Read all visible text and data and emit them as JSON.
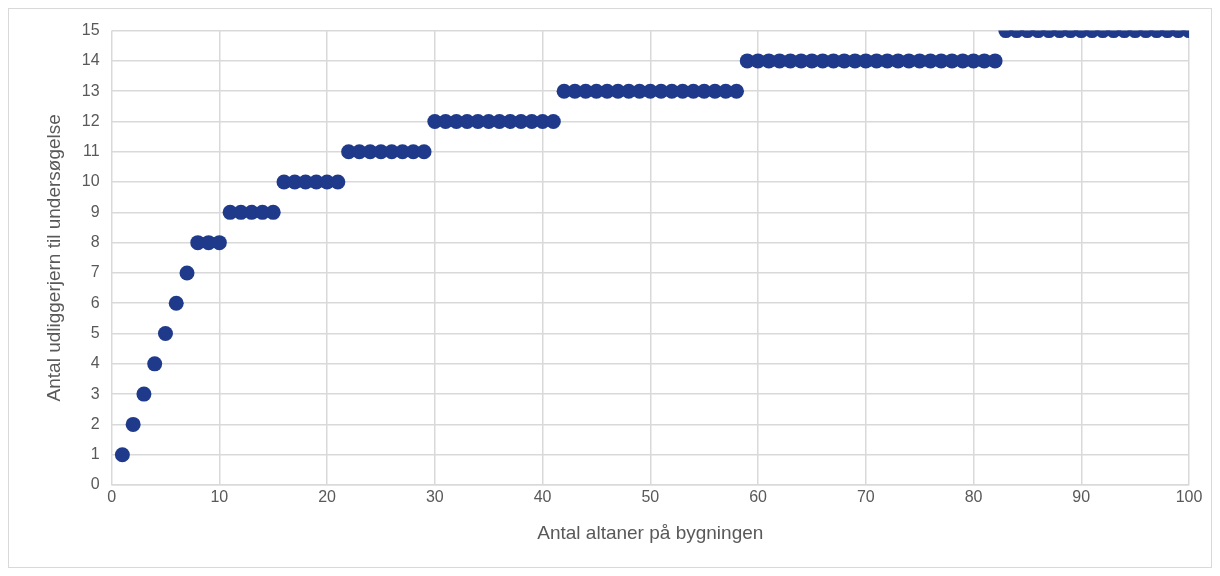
{
  "chart_data": {
    "type": "scatter",
    "xlabel": "Antal altaner på bygningen",
    "ylabel": "Antal udliggerjern til undersøgelse",
    "x": [
      1,
      2,
      3,
      4,
      5,
      6,
      7,
      8,
      9,
      10,
      11,
      12,
      13,
      14,
      15,
      16,
      17,
      18,
      19,
      20,
      21,
      22,
      23,
      24,
      25,
      26,
      27,
      28,
      29,
      30,
      31,
      32,
      33,
      34,
      35,
      36,
      37,
      38,
      39,
      40,
      41,
      42,
      43,
      44,
      45,
      46,
      47,
      48,
      49,
      50,
      51,
      52,
      53,
      54,
      55,
      56,
      57,
      58,
      59,
      60,
      61,
      62,
      63,
      64,
      65,
      66,
      67,
      68,
      69,
      70,
      71,
      72,
      73,
      74,
      75,
      76,
      77,
      78,
      79,
      80,
      81,
      82,
      83,
      84,
      85,
      86,
      87,
      88,
      89,
      90,
      91,
      92,
      93,
      94,
      95,
      96,
      97,
      98,
      99,
      100
    ],
    "series": [
      {
        "color": "#1f3a8a",
        "values": [
          1,
          2,
          3,
          4,
          5,
          6,
          7,
          8,
          8,
          8,
          9,
          9,
          9,
          9,
          9,
          10,
          10,
          10,
          10,
          10,
          10,
          11,
          11,
          11,
          11,
          11,
          11,
          11,
          11,
          12,
          12,
          12,
          12,
          12,
          12,
          12,
          12,
          12,
          12,
          12,
          12,
          13,
          13,
          13,
          13,
          13,
          13,
          13,
          13,
          13,
          13,
          13,
          13,
          13,
          13,
          13,
          13,
          13,
          14,
          14,
          14,
          14,
          14,
          14,
          14,
          14,
          14,
          14,
          14,
          14,
          14,
          14,
          14,
          14,
          14,
          14,
          14,
          14,
          14,
          14,
          14,
          14,
          15,
          15,
          15,
          15,
          15,
          15,
          15,
          15,
          15,
          15,
          15,
          15,
          15,
          15,
          15,
          15,
          15,
          15
        ]
      }
    ],
    "xlim": [
      0,
      100
    ],
    "xticks": [
      0,
      10,
      20,
      30,
      40,
      50,
      60,
      70,
      80,
      90,
      100
    ],
    "ylim": [
      0,
      15
    ],
    "yticks": [
      0,
      1,
      2,
      3,
      4,
      5,
      6,
      7,
      8,
      9,
      10,
      11,
      12,
      13,
      14,
      15
    ],
    "grid": true,
    "legend": false,
    "marker": "circle"
  }
}
